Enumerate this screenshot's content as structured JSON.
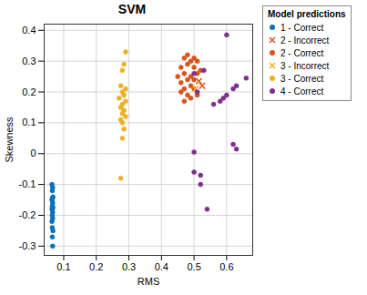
{
  "chart_data": {
    "type": "scatter",
    "title": "SVM",
    "x_label": "RMS",
    "y_label": "Skewness",
    "legend_title": "Model predictions",
    "legend": "right",
    "grid": true,
    "xlim": [
      0.04,
      0.68
    ],
    "xticks": [
      0.1,
      0.2,
      0.3,
      0.4,
      0.5,
      0.6
    ],
    "ylim": [
      -0.33,
      0.42
    ],
    "yticks": [
      -0.3,
      -0.2,
      -0.1,
      0,
      0.1,
      0.2,
      0.3,
      0.4
    ],
    "series": [
      {
        "name": "1 - Correct",
        "color": "#0072BD",
        "marker": "circle",
        "x": [
          0.064,
          0.066,
          0.065,
          0.067,
          0.065,
          0.064,
          0.066,
          0.065,
          0.067,
          0.064,
          0.066,
          0.065,
          0.066,
          0.064,
          0.065,
          0.067,
          0.065,
          0.066
        ],
        "values": [
          -0.1,
          -0.11,
          -0.12,
          -0.14,
          -0.145,
          -0.15,
          -0.16,
          -0.17,
          -0.175,
          -0.18,
          -0.19,
          -0.2,
          -0.21,
          -0.22,
          -0.24,
          -0.25,
          -0.27,
          -0.3
        ]
      },
      {
        "name": "2 - Incorrect",
        "color": "#D95319",
        "marker": "x",
        "x": [
          0.515,
          0.525
        ],
        "values": [
          0.235,
          0.22
        ]
      },
      {
        "name": "2 - Correct",
        "color": "#D95319",
        "marker": "circle",
        "x": [
          0.47,
          0.48,
          0.49,
          0.5,
          0.51,
          0.48,
          0.46,
          0.5,
          0.52,
          0.47,
          0.49,
          0.51,
          0.45,
          0.48,
          0.5,
          0.46,
          0.49,
          0.47,
          0.5,
          0.48,
          0.46,
          0.49,
          0.51,
          0.47
        ],
        "values": [
          0.31,
          0.32,
          0.3,
          0.31,
          0.3,
          0.29,
          0.28,
          0.28,
          0.27,
          0.26,
          0.25,
          0.26,
          0.25,
          0.24,
          0.24,
          0.23,
          0.22,
          0.21,
          0.21,
          0.19,
          0.2,
          0.18,
          0.19,
          0.17
        ]
      },
      {
        "name": "3 - Incorrect",
        "color": "#EDB120",
        "marker": "x",
        "x": [
          0.505
        ],
        "values": [
          0.21
        ]
      },
      {
        "name": "3 - Correct",
        "color": "#EDB120",
        "marker": "circle",
        "x": [
          0.29,
          0.285,
          0.28,
          0.275,
          0.29,
          0.28,
          0.285,
          0.27,
          0.29,
          0.28,
          0.275,
          0.285,
          0.28,
          0.29,
          0.275,
          0.28,
          0.285,
          0.28,
          0.275
        ],
        "values": [
          0.33,
          0.29,
          0.27,
          0.22,
          0.21,
          0.2,
          0.19,
          0.18,
          0.17,
          0.16,
          0.15,
          0.14,
          0.13,
          0.12,
          0.11,
          0.1,
          0.08,
          0.05,
          -0.08
        ]
      },
      {
        "name": "4 - Correct",
        "color": "#7E2F8E",
        "marker": "circle",
        "x": [
          0.6,
          0.53,
          0.56,
          0.58,
          0.59,
          0.6,
          0.62,
          0.63,
          0.66,
          0.62,
          0.63,
          0.5,
          0.5,
          0.52,
          0.52,
          0.54,
          0.51,
          0.5
        ],
        "values": [
          0.385,
          0.27,
          0.16,
          0.17,
          0.18,
          0.19,
          0.21,
          0.22,
          0.245,
          0.03,
          0.015,
          0.005,
          -0.06,
          -0.07,
          -0.1,
          -0.18,
          0.2,
          0.26
        ]
      }
    ]
  }
}
